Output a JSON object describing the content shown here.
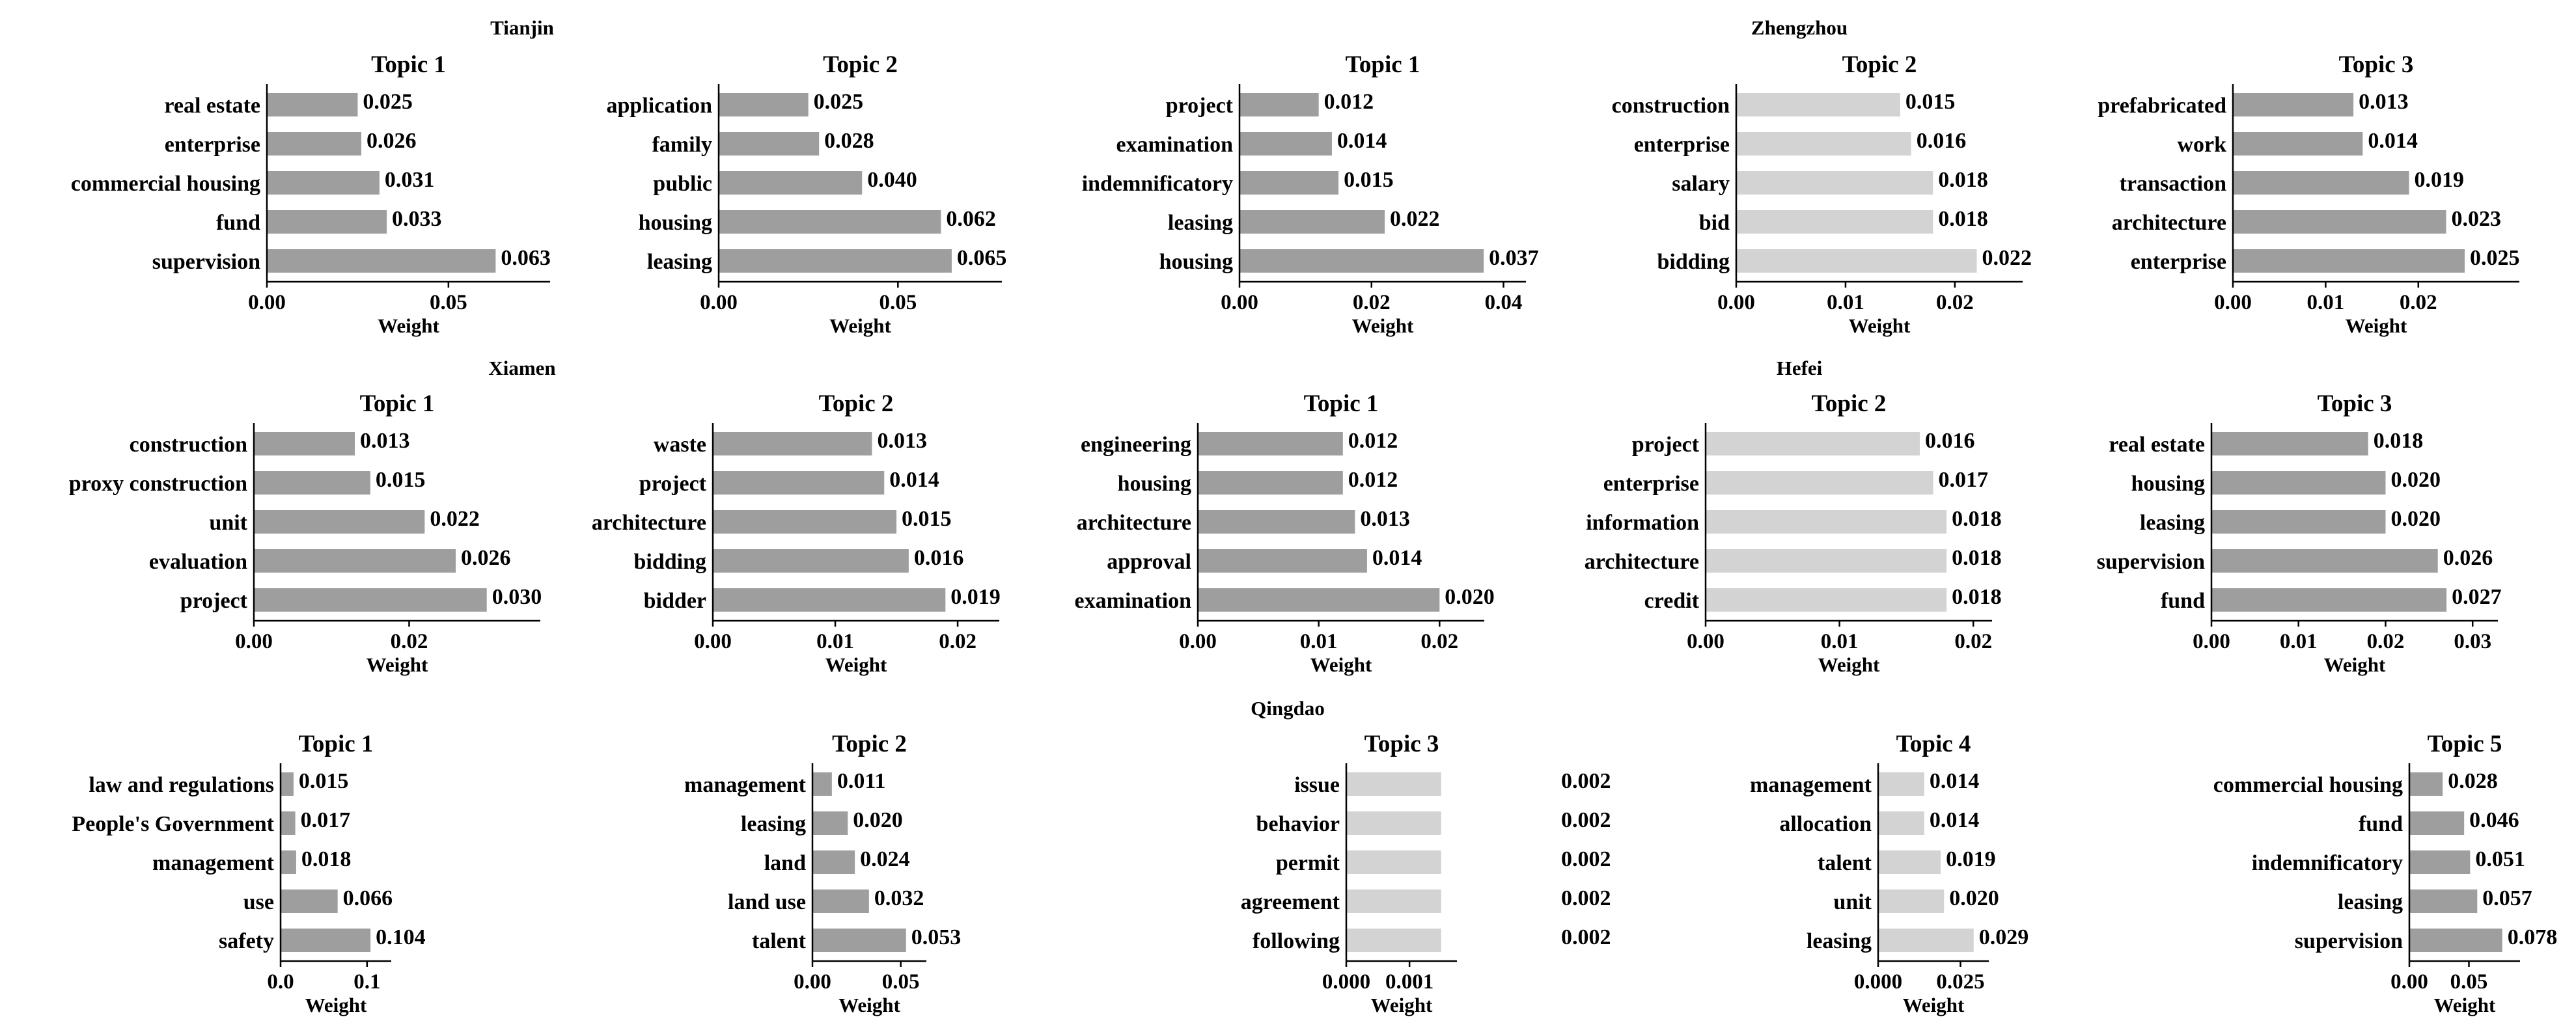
{
  "figure": {
    "city_titles": {
      "tianjin": "Tianjin",
      "zhengzhou": "Zhengzhou",
      "xiamen": "Xiamen",
      "hefei": "Hefei",
      "qingdao": "Qingdao"
    }
  },
  "colors": {
    "dark_bar": "#9e9e9e",
    "light_bar": "#d3d3d3",
    "axis": "#000000"
  },
  "chart_data": [
    {
      "type": "bar",
      "orientation": "horizontal",
      "city": "Tianjin",
      "title": "Topic 1",
      "xlabel": "Weight",
      "color": "dark",
      "categories": [
        "real estate",
        "enterprise",
        "commercial housing",
        "fund",
        "supervision"
      ],
      "values": [
        0.025,
        0.026,
        0.031,
        0.033,
        0.063
      ],
      "labels": [
        "0.025",
        "0.026",
        "0.031",
        "0.033",
        "0.063"
      ],
      "xlim": [
        0,
        0.078
      ],
      "ticks": [
        0,
        0.05
      ],
      "tick_labels": [
        "0.00",
        "0.05"
      ]
    },
    {
      "type": "bar",
      "orientation": "horizontal",
      "city": "Tianjin",
      "title": "Topic 2",
      "xlabel": "Weight",
      "color": "dark",
      "categories": [
        "application",
        "family",
        "public",
        "housing",
        "leasing"
      ],
      "values": [
        0.025,
        0.028,
        0.04,
        0.062,
        0.065
      ],
      "labels": [
        "0.025",
        "0.028",
        "0.040",
        "0.062",
        "0.065"
      ],
      "xlim": [
        0,
        0.079
      ],
      "ticks": [
        0,
        0.05
      ],
      "tick_labels": [
        "0.00",
        "0.05"
      ]
    },
    {
      "type": "bar",
      "orientation": "horizontal",
      "city": "Zhengzhou",
      "title": "Topic 1",
      "xlabel": "Weight",
      "color": "dark",
      "categories": [
        "project",
        "examination",
        "indemnificatory",
        "leasing",
        "housing"
      ],
      "values": [
        0.012,
        0.014,
        0.015,
        0.022,
        0.037
      ],
      "labels": [
        "0.012",
        "0.014",
        "0.015",
        "0.022",
        "0.037"
      ],
      "xlim": [
        0,
        0.0434
      ],
      "ticks": [
        0,
        0.02,
        0.04
      ],
      "tick_labels": [
        "0.00",
        "0.02",
        "0.04"
      ]
    },
    {
      "type": "bar",
      "orientation": "horizontal",
      "city": "Zhengzhou",
      "title": "Topic 2",
      "xlabel": "Weight",
      "color": "light",
      "categories": [
        "construction",
        "enterprise",
        "salary",
        "bid",
        "bidding"
      ],
      "values": [
        0.015,
        0.016,
        0.018,
        0.018,
        0.022
      ],
      "labels": [
        "0.015",
        "0.016",
        "0.018",
        "0.018",
        "0.022"
      ],
      "xlim": [
        0,
        0.0262
      ],
      "ticks": [
        0,
        0.01,
        0.02
      ],
      "tick_labels": [
        "0.00",
        "0.01",
        "0.02"
      ]
    },
    {
      "type": "bar",
      "orientation": "horizontal",
      "city": "Zhengzhou",
      "title": "Topic 3",
      "xlabel": "Weight",
      "color": "dark",
      "categories": [
        "prefabricated",
        "work",
        "transaction",
        "architecture",
        "enterprise"
      ],
      "values": [
        0.013,
        0.014,
        0.019,
        0.023,
        0.025
      ],
      "labels": [
        "0.013",
        "0.014",
        "0.019",
        "0.023",
        "0.025"
      ],
      "xlim": [
        0,
        0.0309
      ],
      "ticks": [
        0,
        0.01,
        0.02
      ],
      "tick_labels": [
        "0.00",
        "0.01",
        "0.02"
      ]
    },
    {
      "type": "bar",
      "orientation": "horizontal",
      "city": "Xiamen",
      "title": "Topic 1",
      "xlabel": "Weight",
      "color": "dark",
      "categories": [
        "construction",
        "proxy construction",
        "unit",
        "evaluation",
        "project"
      ],
      "values": [
        0.013,
        0.015,
        0.022,
        0.026,
        0.03
      ],
      "labels": [
        "0.013",
        "0.015",
        "0.022",
        "0.026",
        "0.030"
      ],
      "xlim": [
        0,
        0.0369
      ],
      "ticks": [
        0,
        0.02
      ],
      "tick_labels": [
        "0.00",
        "0.02"
      ]
    },
    {
      "type": "bar",
      "orientation": "horizontal",
      "city": "Xiamen",
      "title": "Topic 2",
      "xlabel": "Weight",
      "color": "dark",
      "categories": [
        "waste",
        "project",
        "architecture",
        "bidding",
        "bidder"
      ],
      "values": [
        0.013,
        0.014,
        0.015,
        0.016,
        0.019
      ],
      "labels": [
        "0.013",
        "0.014",
        "0.015",
        "0.016",
        "0.019"
      ],
      "xlim": [
        0,
        0.0234
      ],
      "ticks": [
        0,
        0.01,
        0.02
      ],
      "tick_labels": [
        "0.00",
        "0.01",
        "0.02"
      ]
    },
    {
      "type": "bar",
      "orientation": "horizontal",
      "city": "Hefei",
      "title": "Topic 1",
      "xlabel": "Weight",
      "color": "dark",
      "categories": [
        "engineering",
        "housing",
        "architecture",
        "approval",
        "examination"
      ],
      "values": [
        0.012,
        0.012,
        0.013,
        0.014,
        0.02
      ],
      "labels": [
        "0.012",
        "0.012",
        "0.013",
        "0.014",
        "0.020"
      ],
      "xlim": [
        0,
        0.0237
      ],
      "ticks": [
        0,
        0.01,
        0.02
      ],
      "tick_labels": [
        "0.00",
        "0.01",
        "0.02"
      ]
    },
    {
      "type": "bar",
      "orientation": "horizontal",
      "city": "Hefei",
      "title": "Topic 2",
      "xlabel": "Weight",
      "color": "light",
      "categories": [
        "project",
        "enterprise",
        "information",
        "architecture",
        "credit"
      ],
      "values": [
        0.016,
        0.017,
        0.018,
        0.018,
        0.018
      ],
      "labels": [
        "0.016",
        "0.017",
        "0.018",
        "0.018",
        "0.018"
      ],
      "xlim": [
        0,
        0.0214
      ],
      "ticks": [
        0,
        0.01,
        0.02
      ],
      "tick_labels": [
        "0.00",
        "0.01",
        "0.02"
      ]
    },
    {
      "type": "bar",
      "orientation": "horizontal",
      "city": "Hefei",
      "title": "Topic 3",
      "xlabel": "Weight",
      "color": "dark",
      "categories": [
        "real estate",
        "housing",
        "leasing",
        "supervision",
        "fund"
      ],
      "values": [
        0.018,
        0.02,
        0.02,
        0.026,
        0.027
      ],
      "labels": [
        "0.018",
        "0.020",
        "0.020",
        "0.026",
        "0.027"
      ],
      "xlim": [
        0,
        0.0329
      ],
      "ticks": [
        0,
        0.01,
        0.02,
        0.03
      ],
      "tick_labels": [
        "0.00",
        "0.01",
        "0.02",
        "0.03"
      ]
    },
    {
      "type": "bar",
      "orientation": "horizontal",
      "city": "Qingdao",
      "title": "Topic 1",
      "xlabel": "Weight",
      "color": "dark",
      "categories": [
        "law and regulations",
        "People's Government",
        "management",
        "use",
        "safety"
      ],
      "values": [
        0.015,
        0.017,
        0.018,
        0.066,
        0.104
      ],
      "labels": [
        "0.015",
        "0.017",
        "0.018",
        "0.066",
        "0.104"
      ],
      "xlim": [
        0,
        0.128
      ],
      "ticks": [
        0,
        0.1
      ],
      "tick_labels": [
        "0.0",
        "0.1"
      ]
    },
    {
      "type": "bar",
      "orientation": "horizontal",
      "city": "Qingdao",
      "title": "Topic 2",
      "xlabel": "Weight",
      "color": "dark",
      "categories": [
        "management",
        "leasing",
        "land",
        "land use",
        "talent"
      ],
      "values": [
        0.011,
        0.02,
        0.024,
        0.032,
        0.053
      ],
      "labels": [
        "0.011",
        "0.020",
        "0.024",
        "0.032",
        "0.053"
      ],
      "xlim": [
        0,
        0.0645
      ],
      "ticks": [
        0,
        0.05
      ],
      "tick_labels": [
        "0.00",
        "0.05"
      ]
    },
    {
      "type": "bar",
      "orientation": "horizontal",
      "city": "Qingdao",
      "title": "Topic 3",
      "xlabel": "Weight",
      "color": "light",
      "categories": [
        "issue",
        "behavior",
        "permit",
        "agreement",
        "following"
      ],
      "values": [
        0.0015,
        0.0015,
        0.0015,
        0.0015,
        0.0015
      ],
      "labels": [
        "0.002",
        "0.002",
        "0.002",
        "0.002",
        "0.002"
      ],
      "xlim": [
        0,
        0.00175
      ],
      "ticks": [
        0,
        0.001
      ],
      "tick_labels": [
        "0.000",
        "0.001"
      ]
    },
    {
      "type": "bar",
      "orientation": "horizontal",
      "city": "Qingdao",
      "title": "Topic 4",
      "xlabel": "Weight",
      "color": "light",
      "categories": [
        "management",
        "allocation",
        "talent",
        "unit",
        "leasing"
      ],
      "values": [
        0.014,
        0.014,
        0.019,
        0.02,
        0.029
      ],
      "labels": [
        "0.014",
        "0.014",
        "0.019",
        "0.020",
        "0.029"
      ],
      "xlim": [
        0,
        0.0336
      ],
      "ticks": [
        0,
        0.025
      ],
      "tick_labels": [
        "0.000",
        "0.025"
      ]
    },
    {
      "type": "bar",
      "orientation": "horizontal",
      "city": "Qingdao",
      "title": "Topic 5",
      "xlabel": "Weight",
      "color": "dark",
      "categories": [
        "commercial housing",
        "fund",
        "indemnificatory",
        "leasing",
        "supervision"
      ],
      "values": [
        0.028,
        0.046,
        0.051,
        0.057,
        0.078
      ],
      "labels": [
        "0.028",
        "0.046",
        "0.051",
        "0.057",
        "0.078"
      ],
      "xlim": [
        0,
        0.0929
      ],
      "ticks": [
        0,
        0.05
      ],
      "tick_labels": [
        "0.00",
        "0.05"
      ]
    }
  ]
}
